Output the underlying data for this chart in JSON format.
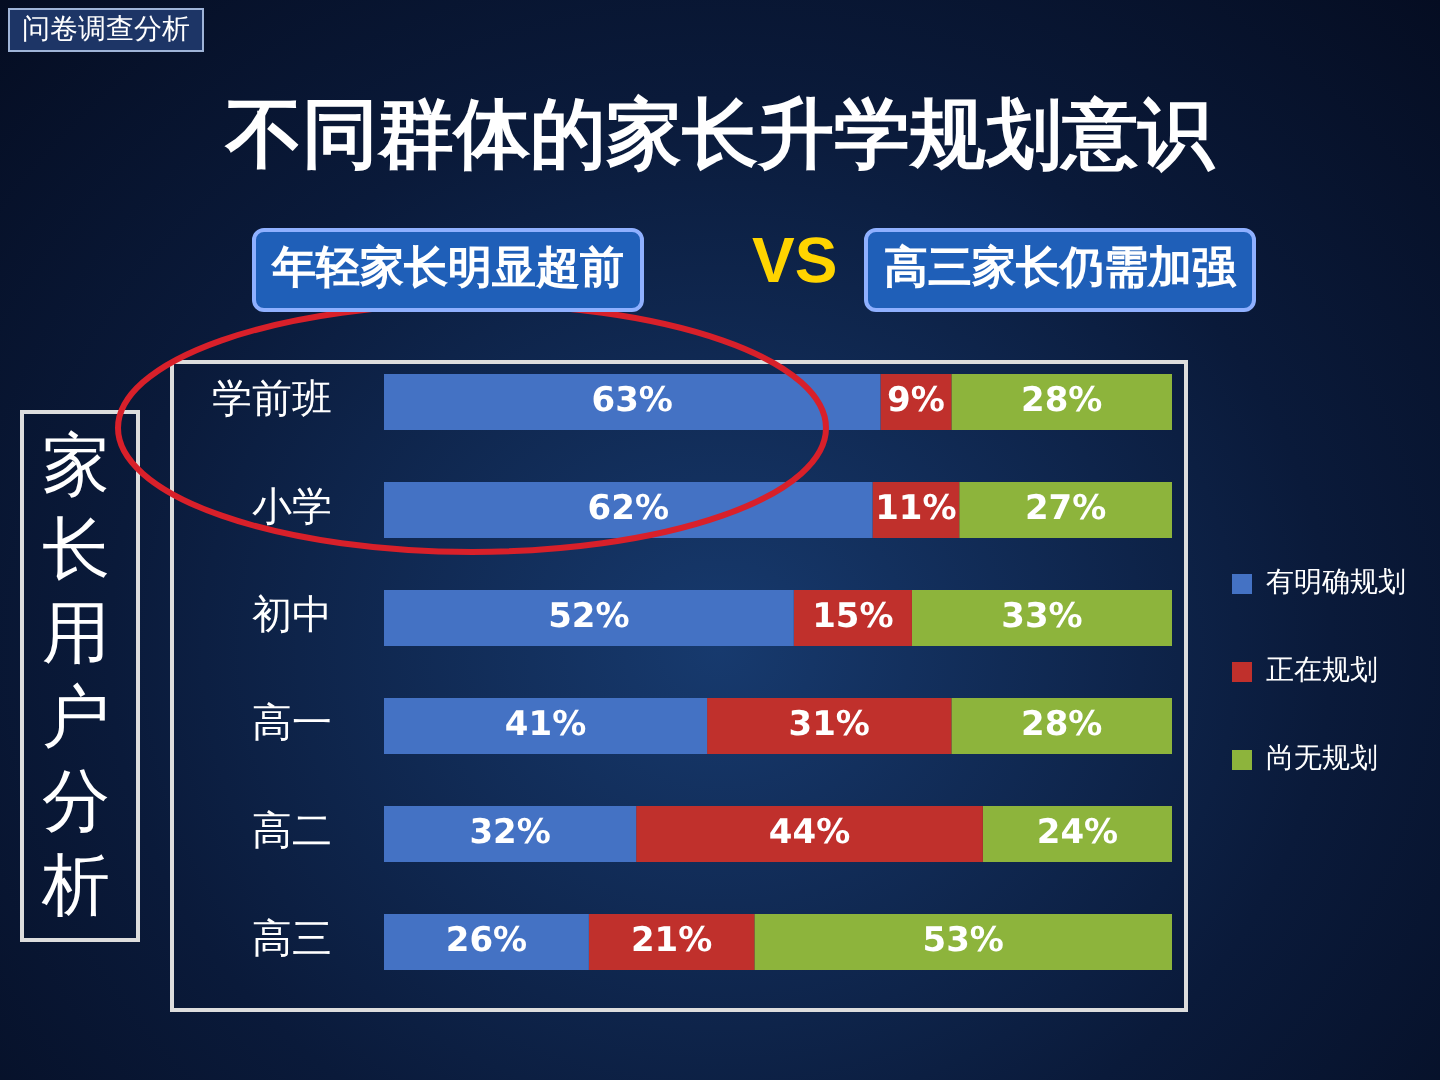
{
  "chart_data": {
    "type": "bar",
    "orientation": "horizontal",
    "stacked": true,
    "title": "不同群体的家长升学规划意识",
    "ylabel": "家长用户分析",
    "annotations": [
      "问卷调查分析",
      "年轻家长明显超前",
      "VS",
      "高三家长仍需加强"
    ],
    "categories": [
      "学前班",
      "小学",
      "初中",
      "高一",
      "高二",
      "高三"
    ],
    "series": [
      {
        "name": "有明确规划",
        "color": "#4472c4",
        "values": [
          63,
          62,
          52,
          41,
          32,
          26
        ],
        "value_labels": [
          "63%",
          "62%",
          "52%",
          "41%",
          "32%",
          "26%"
        ]
      },
      {
        "name": "正在规划",
        "color": "#c0302c",
        "values": [
          9,
          11,
          15,
          31,
          44,
          21
        ],
        "value_labels": [
          "9%",
          "11%",
          "15%",
          "31%",
          "44%",
          "21%"
        ]
      },
      {
        "name": "尚无规划",
        "color": "#8db43c",
        "values": [
          28,
          27,
          33,
          28,
          24,
          53
        ],
        "value_labels": [
          "28%",
          "27%",
          "33%",
          "28%",
          "24%",
          "53%"
        ]
      }
    ],
    "xlim": [
      0,
      100
    ],
    "tick_labels": "y",
    "legend": "right"
  }
}
